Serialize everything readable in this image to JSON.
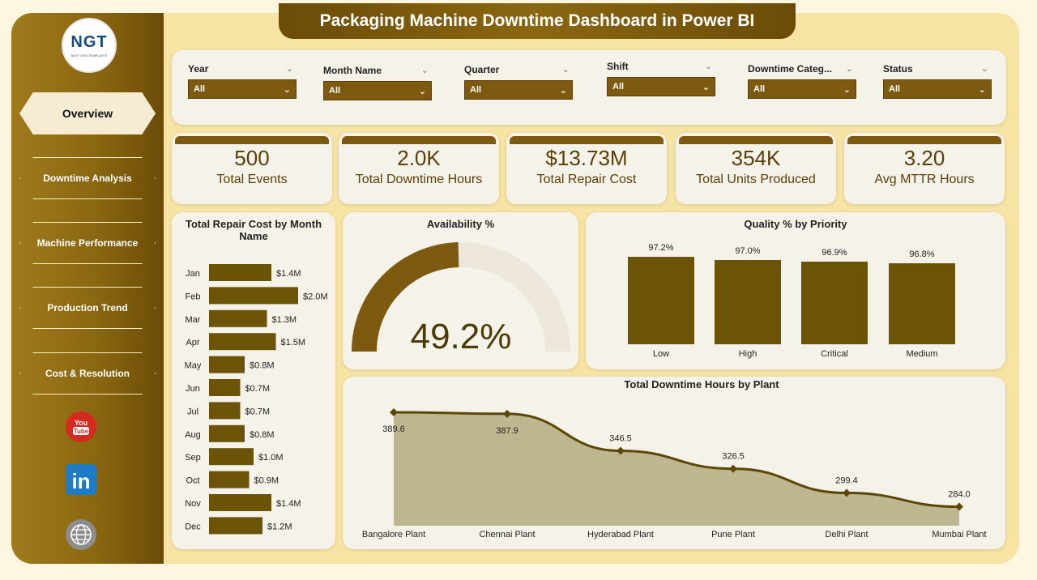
{
  "header": {
    "title": "Packaging Machine Downtime Dashboard in Power BI"
  },
  "logo": {
    "text": "NGT",
    "subtext": "NEXT GEN TEMPLATES"
  },
  "nav": [
    {
      "label": "Overview",
      "active": true
    },
    {
      "label": "Downtime Analysis",
      "active": false
    },
    {
      "label": "Machine Performance",
      "active": false
    },
    {
      "label": "Production Trend",
      "active": false
    },
    {
      "label": "Cost & Resolution",
      "active": false
    }
  ],
  "social": [
    {
      "icon": "youtube-icon",
      "label": "You Tube"
    },
    {
      "icon": "linkedin-icon",
      "label": "in"
    },
    {
      "icon": "web-globe-icon",
      "label": ""
    }
  ],
  "slicers": [
    {
      "label": "Year",
      "value": "All"
    },
    {
      "label": "Month Name",
      "value": "All"
    },
    {
      "label": "Quarter",
      "value": "All"
    },
    {
      "label": "Shift",
      "value": "All"
    },
    {
      "label": "Downtime Categ...",
      "value": "All"
    },
    {
      "label": "Status",
      "value": "All"
    }
  ],
  "kpis": [
    {
      "value": "500",
      "label": "Total Events"
    },
    {
      "value": "2.0K",
      "label": "Total Downtime Hours"
    },
    {
      "value": "$13.73M",
      "label": "Total Repair Cost"
    },
    {
      "value": "354K",
      "label": "Total Units Produced"
    },
    {
      "value": "3.20",
      "label": "Avg MTTR Hours"
    }
  ],
  "colors": {
    "accent": "#7d5a10",
    "bar": "#6b5308",
    "panel": "#f5f2ea",
    "frame": "#f7e3a3",
    "area": "#beb68f"
  },
  "chart_data": [
    {
      "type": "bar",
      "orientation": "horizontal",
      "title": "Total Repair Cost by Month Name",
      "categories": [
        "Jan",
        "Feb",
        "Mar",
        "Apr",
        "May",
        "Jun",
        "Jul",
        "Aug",
        "Sep",
        "Oct",
        "Nov",
        "Dec"
      ],
      "values": [
        1.4,
        2.0,
        1.3,
        1.5,
        0.8,
        0.7,
        0.7,
        0.8,
        1.0,
        0.9,
        1.4,
        1.2
      ],
      "labels": [
        "$1.4M",
        "$2.0M",
        "$1.3M",
        "$1.5M",
        "$0.8M",
        "$0.7M",
        "$0.7M",
        "$0.8M",
        "$1.0M",
        "$0.9M",
        "$1.4M",
        "$1.2M"
      ]
    },
    {
      "type": "gauge",
      "title": "Availability %",
      "value": 49.2,
      "max": 100,
      "label": "49.2%"
    },
    {
      "type": "bar",
      "title": "Quality % by Priority",
      "categories": [
        "Low",
        "High",
        "Critical",
        "Medium"
      ],
      "values": [
        97.2,
        97.0,
        96.9,
        96.8
      ],
      "labels": [
        "97.2%",
        "97.0%",
        "96.9%",
        "96.8%"
      ]
    },
    {
      "type": "area",
      "title": "Total Downtime Hours by Plant",
      "categories": [
        "Bangalore Plant",
        "Chennai Plant",
        "Hyderabad Plant",
        "Pune Plant",
        "Delhi Plant",
        "Mumbai Plant"
      ],
      "values": [
        389.6,
        387.9,
        346.5,
        326.5,
        299.4,
        284.0
      ],
      "labels": [
        "389.6",
        "387.9",
        "346.5",
        "326.5",
        "299.4",
        "284.0"
      ]
    }
  ]
}
